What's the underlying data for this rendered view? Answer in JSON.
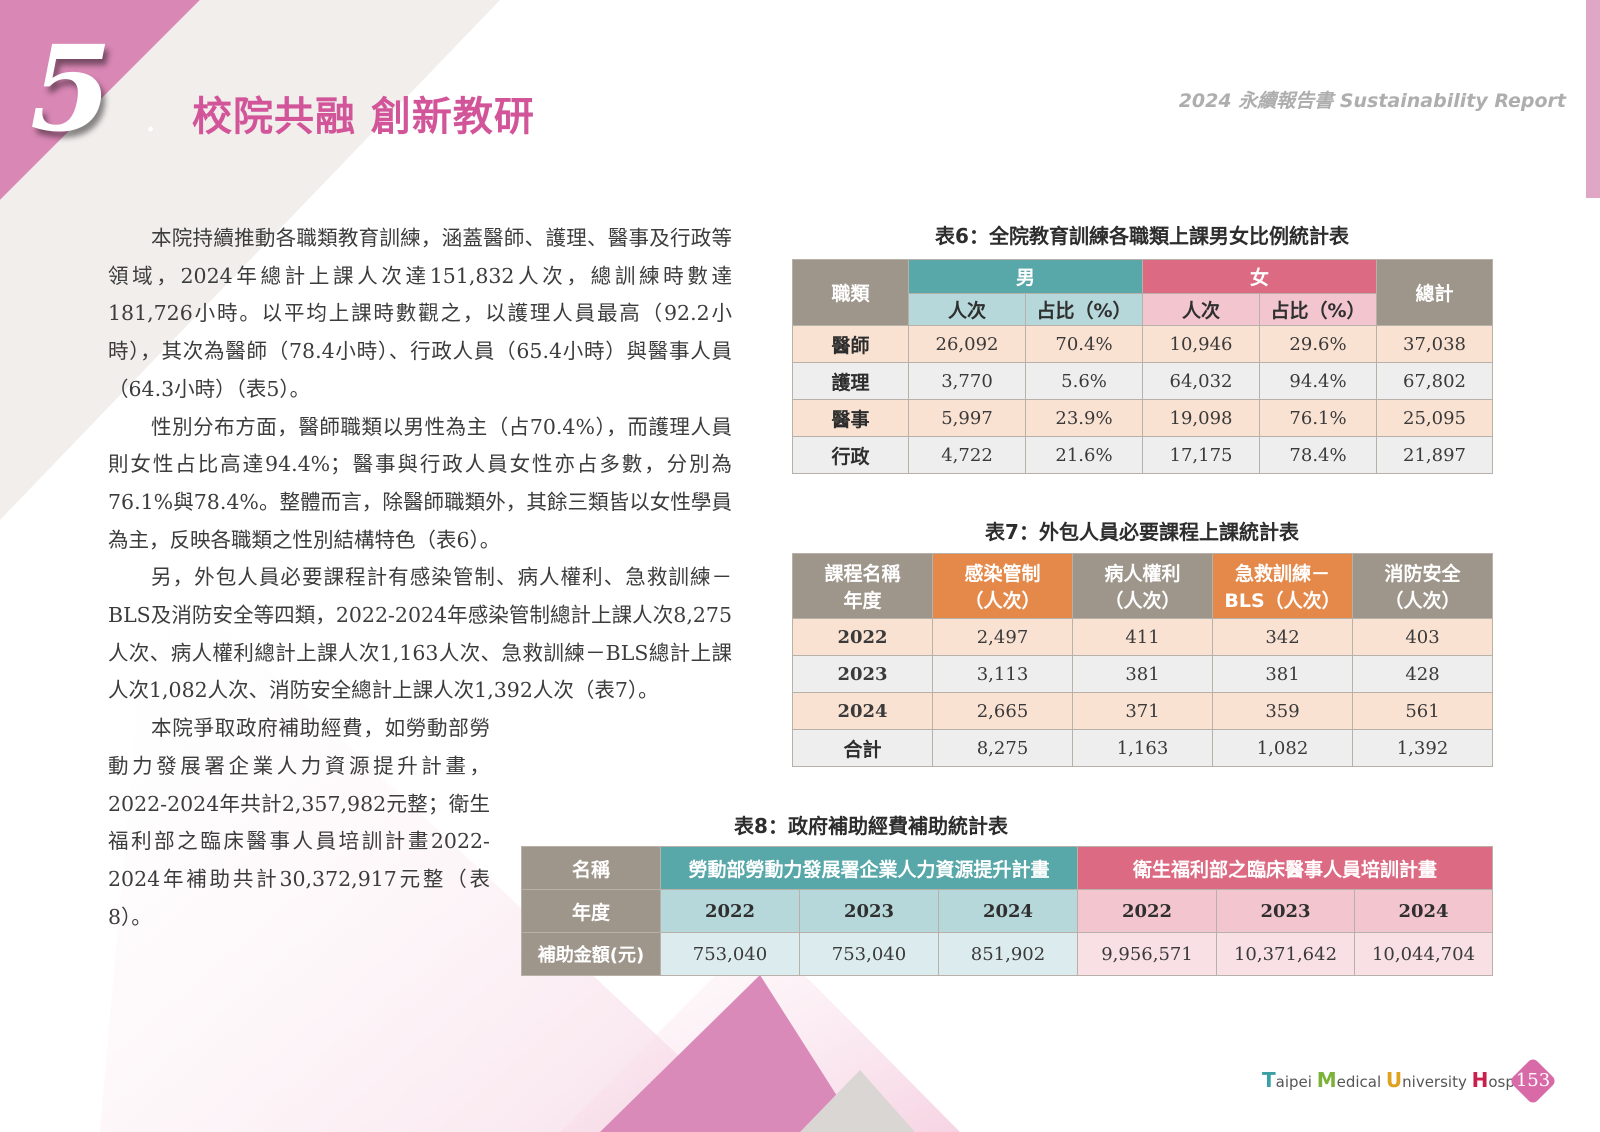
{
  "header": {
    "chapter_number": "5",
    "chapter_title": "校院共融 創新教研",
    "report_title": "2024 永續報告書 Sustainability Report"
  },
  "body_paragraphs": [
    "本院持續推動各職類教育訓練，涵蓋醫師、護理、醫事及行政等領域，2024年總計上課人次達151,832人次，總訓練時數達181,726小時。以平均上課時數觀之，以護理人員最高（92.2小時），其次為醫師（78.4小時）、行政人員（65.4小時）與醫事人員（64.3小時）（表5）。",
    "性別分布方面，醫師職類以男性為主（占70.4%），而護理人員則女性占比高達94.4%；醫事與行政人員女性亦占多數，分別為76.1%與78.4%。整體而言，除醫師職類外，其餘三類皆以女性學員為主，反映各職類之性別結構特色（表6）。",
    "另，外包人員必要課程計有感染管制、病人權利、急救訓練－BLS及消防安全等四類，2022-2024年感染管制總計上課人次8,275人次、病人權利總計上課人次1,163人次、急救訓練－BLS總計上課人次1,082人次、消防安全總計上課人次1,392人次（表7）。",
    "本院爭取政府補助經費，如勞動部勞動力發展署企業人力資源提升計畫，2022-2024年共計2,357,982元整；衛生福利部之臨床醫事人員培訓計畫2022-2024年補助共計30,372,917元整（表8）。"
  ],
  "table6": {
    "caption": "表6：全院教育訓練各職類上課男女比例統計表",
    "h_category": "職類",
    "h_male": "男",
    "h_female": "女",
    "h_total": "總計",
    "h_count": "人次",
    "h_ratio": "占比（%）",
    "rows": [
      {
        "label": "醫師",
        "m_count": "26,092",
        "m_ratio": "70.4%",
        "f_count": "10,946",
        "f_ratio": "29.6%",
        "total": "37,038"
      },
      {
        "label": "護理",
        "m_count": "3,770",
        "m_ratio": "5.6%",
        "f_count": "64,032",
        "f_ratio": "94.4%",
        "total": "67,802"
      },
      {
        "label": "醫事",
        "m_count": "5,997",
        "m_ratio": "23.9%",
        "f_count": "19,098",
        "f_ratio": "76.1%",
        "total": "25,095"
      },
      {
        "label": "行政",
        "m_count": "4,722",
        "m_ratio": "21.6%",
        "f_count": "17,175",
        "f_ratio": "78.4%",
        "total": "21,897"
      }
    ]
  },
  "table7": {
    "caption": "表7：外包人員必要課程上課統計表",
    "h_course_l1": "課程名稱",
    "h_course_l2": "年度",
    "h_infection_l1": "感染管制",
    "h_infection_l2": "（人次）",
    "h_rights_l1": "病人權利",
    "h_rights_l2": "（人次）",
    "h_bls_l1": "急救訓練－",
    "h_bls_l2": "BLS（人次）",
    "h_fire_l1": "消防安全",
    "h_fire_l2": "（人次）",
    "rows": [
      {
        "label": "2022",
        "infection": "2,497",
        "rights": "411",
        "bls": "342",
        "fire": "403"
      },
      {
        "label": "2023",
        "infection": "3,113",
        "rights": "381",
        "bls": "381",
        "fire": "428"
      },
      {
        "label": "2024",
        "infection": "2,665",
        "rights": "371",
        "bls": "359",
        "fire": "561"
      },
      {
        "label": "合計",
        "infection": "8,275",
        "rights": "1,163",
        "bls": "1,082",
        "fire": "1,392"
      }
    ]
  },
  "table8": {
    "caption": "表8：政府補助經費補助統計表",
    "h_name": "名稱",
    "h_plan1": "勞動部勞動力發展署企業人力資源提升計畫",
    "h_plan2": "衛生福利部之臨床醫事人員培訓計畫",
    "h_year": "年度",
    "years": [
      "2022",
      "2023",
      "2024",
      "2022",
      "2023",
      "2024"
    ],
    "h_amount": "補助金額(元)",
    "amounts": [
      "753,040",
      "753,040",
      "851,902",
      "9,956,571",
      "10,371,642",
      "10,044,704"
    ]
  },
  "footer": {
    "logo_T": "T",
    "logo_aipei": "aipei ",
    "logo_M": "M",
    "logo_edical": "edical ",
    "logo_U": "U",
    "logo_niversity": "niversity ",
    "logo_H": "H",
    "logo_ospital": "ospital",
    "page_number": "153"
  },
  "colors": {
    "accent_pink": "#d2559a",
    "teal": "#58a7a9",
    "rose": "#dc6a82",
    "orange": "#e5894a",
    "gray_header": "#9e958b",
    "logo_T": "#3aa0a6",
    "logo_M": "#7bb33a",
    "logo_U": "#e0a020",
    "logo_H": "#c8204a"
  }
}
